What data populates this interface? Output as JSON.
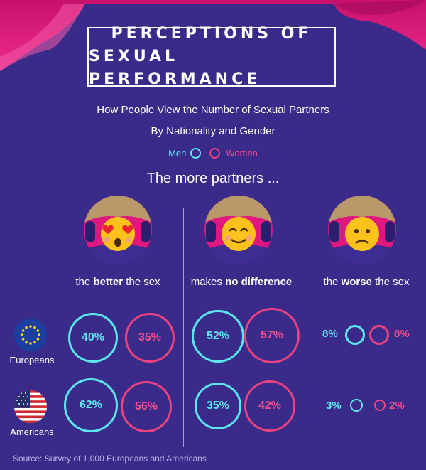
{
  "title_lines": [
    "PERCEPTIONS OF",
    "SEXUAL PERFORMANCE"
  ],
  "subtitle_lines": [
    "How People View the Number of Sexual Partners",
    "By Nationality and Gender"
  ],
  "legend": {
    "men": "Men",
    "women": "Women"
  },
  "lead": "The more partners ...",
  "colors": {
    "men": "#5ee6ee",
    "women": "#e8437f",
    "background": "#3a2a8a",
    "sheet": "#e0177e"
  },
  "chart_data": {
    "type": "table",
    "columns": [
      {
        "pre": "the ",
        "bold": "better",
        "post": " the sex",
        "icon": "heart-eyes-emoji-icon"
      },
      {
        "pre": "makes ",
        "bold": "no difference",
        "post": "",
        "icon": "smiling-emoji-icon"
      },
      {
        "pre": "the ",
        "bold": "worse",
        "post": " the sex",
        "icon": "frowning-emoji-icon"
      }
    ],
    "rows": [
      {
        "label": "Europeans",
        "icon": "eu-flag-icon",
        "men": [
          40,
          52,
          8
        ],
        "women": [
          35,
          57,
          8
        ]
      },
      {
        "label": "Americans",
        "icon": "us-flag-icon",
        "men": [
          62,
          35,
          3
        ],
        "women": [
          56,
          42,
          2
        ]
      }
    ],
    "unit": "%"
  },
  "source": "Source: Survey of 1,000 Europeans and Americans"
}
